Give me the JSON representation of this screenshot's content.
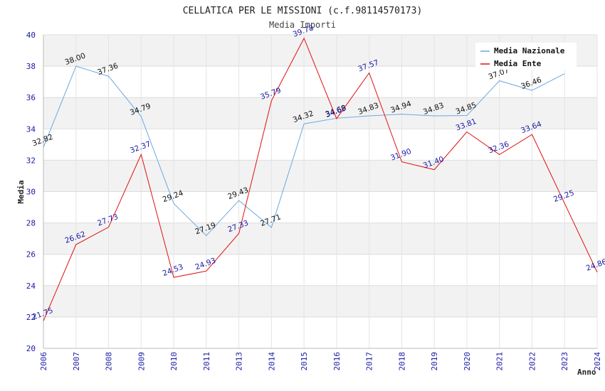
{
  "chart_data": {
    "type": "line",
    "title": "CELLATICA PER LE MISSIONI (c.f.98114570173)",
    "subtitle": "Media Importi",
    "xlabel": "Anno",
    "ylabel": "Media",
    "ylim": [
      20,
      40
    ],
    "yticks": [
      "20",
      "22",
      "24",
      "26",
      "28",
      "30",
      "32",
      "34",
      "36",
      "38",
      "40"
    ],
    "categories": [
      "2006",
      "2007",
      "2008",
      "2009",
      "2010",
      "2011",
      "2013",
      "2014",
      "2015",
      "2016",
      "2017",
      "2018",
      "2019",
      "2020",
      "2021",
      "2022",
      "2023",
      "2024"
    ],
    "series": [
      {
        "name": "Media Nazionale",
        "color": "#6aa9e0",
        "values": [
          32.82,
          38.0,
          37.36,
          34.79,
          29.24,
          27.19,
          29.43,
          27.71,
          34.32,
          34.68,
          34.83,
          34.94,
          34.83,
          34.85,
          37.07,
          36.46,
          37.52,
          null
        ],
        "labels": [
          "32.82",
          "38.00",
          "37.36",
          "34.79",
          "29.24",
          "27.19",
          "29.43",
          "27.71",
          "34.32",
          "34.68",
          "34.83",
          "34.94",
          "34.83",
          "34.85",
          "37.07",
          "36.46",
          "",
          ""
        ]
      },
      {
        "name": "Media Ente",
        "color": "#e01010",
        "values": [
          21.75,
          26.62,
          27.73,
          32.37,
          24.53,
          24.93,
          27.33,
          35.79,
          39.78,
          34.65,
          37.57,
          31.9,
          31.4,
          33.81,
          32.36,
          33.64,
          29.25,
          24.86
        ],
        "labels": [
          "21.75",
          "26.62",
          "27.73",
          "32.37",
          "24.53",
          "24.93",
          "27.33",
          "35.79",
          "39.78",
          "34.65",
          "37.57",
          "31.90",
          "31.40",
          "33.81",
          "32.36",
          "33.64",
          "29.25",
          "24.86"
        ]
      }
    ],
    "legend": "top-right",
    "grid": true
  }
}
